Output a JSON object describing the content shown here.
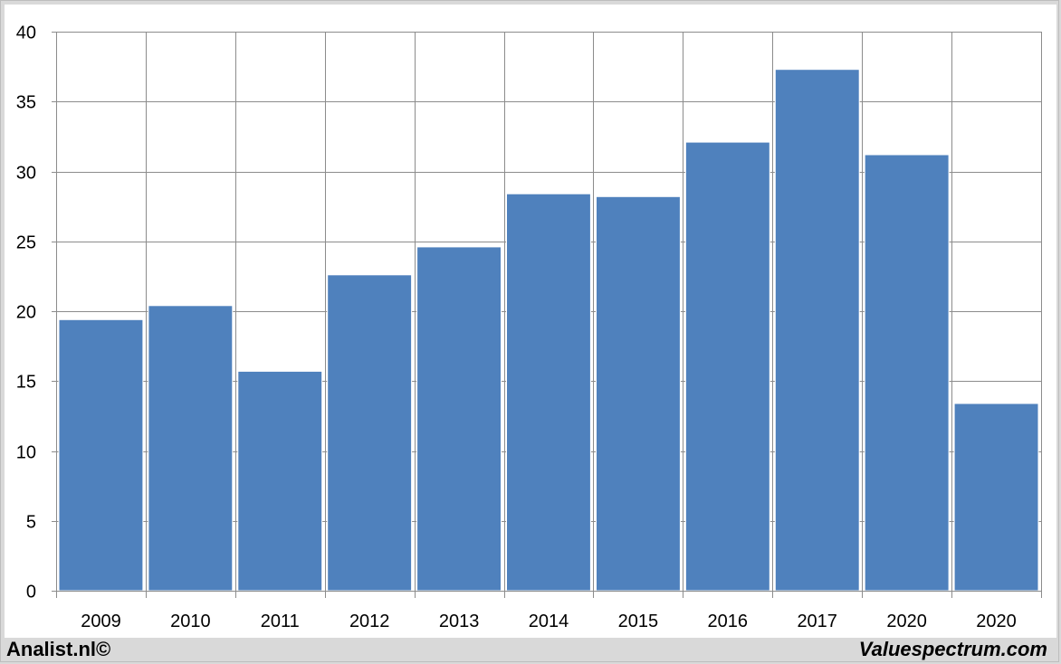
{
  "chart_data": {
    "type": "bar",
    "categories": [
      "2009",
      "2010",
      "2011",
      "2012",
      "2013",
      "2014",
      "2015",
      "2016",
      "2017",
      "2020",
      "2020"
    ],
    "values": [
      19.4,
      20.4,
      15.7,
      22.6,
      24.6,
      28.4,
      28.2,
      32.1,
      37.3,
      31.2,
      13.4
    ],
    "title": "",
    "xlabel": "",
    "ylabel": "",
    "ylim": [
      0,
      40
    ],
    "yticks": [
      0,
      5,
      10,
      15,
      20,
      25,
      30,
      35,
      40
    ],
    "grid": true,
    "bar_color": "#4f81bd",
    "grid_color": "#8c8c8c"
  },
  "footer": {
    "left_text": "Analist.nl©",
    "right_text": "Valuespectrum.com"
  }
}
